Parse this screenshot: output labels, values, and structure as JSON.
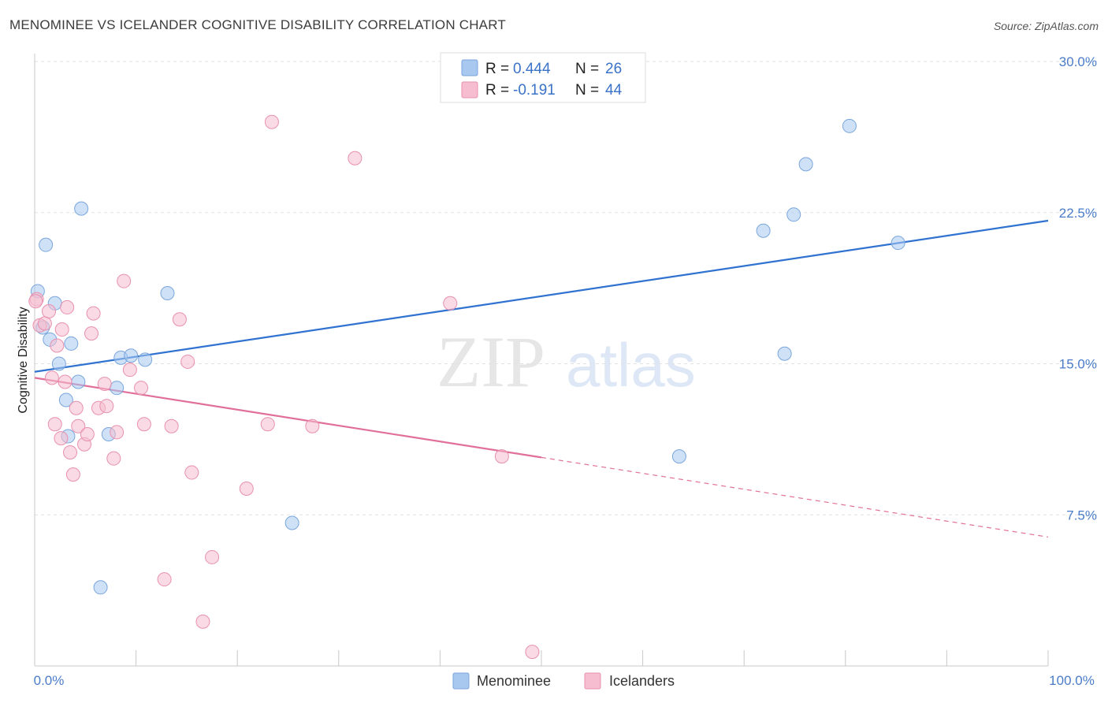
{
  "chart_data": {
    "type": "scatter",
    "title": "MENOMINEE VS ICELANDER COGNITIVE DISABILITY CORRELATION CHART",
    "source": "Source: ZipAtlas.com",
    "xlabel": "",
    "ylabel": "Cognitive Disability",
    "xlim": [
      0,
      100
    ],
    "ylim": [
      0,
      30
    ],
    "x_tick_labels": [
      "0.0%",
      "100.0%"
    ],
    "y_ticks": [
      7.5,
      15.0,
      22.5,
      30.0
    ],
    "y_tick_labels": [
      "7.5%",
      "15.0%",
      "22.5%",
      "30.0%"
    ],
    "watermark": {
      "zip": "ZIP",
      "atlas": "atlas"
    },
    "legend": {
      "r_label": "R =",
      "n_label": "N =",
      "entries": [
        {
          "r": "0.444",
          "n": "26"
        },
        {
          "r": "-0.191",
          "n": "44"
        }
      ]
    },
    "series": [
      {
        "name": "Menominee",
        "color": "#a8c8f0",
        "stroke": "#7aa6dc",
        "line_color": "#2f72d0",
        "trend": {
          "x0": 0,
          "y0": 14.6,
          "x1": 100,
          "y1": 22.1,
          "solid_until": 100
        },
        "points": [
          [
            0.3,
            18.6
          ],
          [
            0.8,
            16.8
          ],
          [
            1.1,
            20.9
          ],
          [
            1.5,
            16.2
          ],
          [
            2.0,
            18.0
          ],
          [
            2.4,
            15.0
          ],
          [
            3.1,
            13.2
          ],
          [
            3.3,
            11.4
          ],
          [
            3.6,
            16.0
          ],
          [
            4.3,
            14.1
          ],
          [
            4.6,
            22.7
          ],
          [
            6.5,
            3.9
          ],
          [
            7.3,
            11.5
          ],
          [
            8.1,
            13.8
          ],
          [
            8.5,
            15.3
          ],
          [
            9.5,
            15.4
          ],
          [
            10.9,
            15.2
          ],
          [
            13.1,
            18.5
          ],
          [
            25.4,
            7.1
          ],
          [
            63.6,
            10.4
          ],
          [
            71.9,
            21.6
          ],
          [
            74.0,
            15.5
          ],
          [
            74.9,
            22.4
          ],
          [
            76.1,
            24.9
          ],
          [
            80.4,
            26.8
          ],
          [
            85.2,
            21.0
          ]
        ]
      },
      {
        "name": "Icelanders",
        "color": "#f6bdd0",
        "stroke": "#e890ae",
        "line_color": "#e0709a",
        "trend": {
          "x0": 0,
          "y0": 14.3,
          "x1": 100,
          "y1": 6.4,
          "solid_until": 50
        },
        "points": [
          [
            0.2,
            18.2
          ],
          [
            0.5,
            16.9
          ],
          [
            1.0,
            17.0
          ],
          [
            1.4,
            17.6
          ],
          [
            1.7,
            14.3
          ],
          [
            2.0,
            12.0
          ],
          [
            2.2,
            15.9
          ],
          [
            2.6,
            11.3
          ],
          [
            2.7,
            16.7
          ],
          [
            3.0,
            14.1
          ],
          [
            3.2,
            17.8
          ],
          [
            3.5,
            10.6
          ],
          [
            3.8,
            9.5
          ],
          [
            4.1,
            12.8
          ],
          [
            4.3,
            11.9
          ],
          [
            4.9,
            11.0
          ],
          [
            5.2,
            11.5
          ],
          [
            5.6,
            16.5
          ],
          [
            5.8,
            17.5
          ],
          [
            6.3,
            12.8
          ],
          [
            6.9,
            14.0
          ],
          [
            7.1,
            12.9
          ],
          [
            7.8,
            10.3
          ],
          [
            8.1,
            11.6
          ],
          [
            8.8,
            19.1
          ],
          [
            9.4,
            14.7
          ],
          [
            10.5,
            13.8
          ],
          [
            10.8,
            12.0
          ],
          [
            12.8,
            4.3
          ],
          [
            13.5,
            11.9
          ],
          [
            14.3,
            17.2
          ],
          [
            15.1,
            15.1
          ],
          [
            15.5,
            9.6
          ],
          [
            16.6,
            2.2
          ],
          [
            17.5,
            5.4
          ],
          [
            20.9,
            8.8
          ],
          [
            23.0,
            12.0
          ],
          [
            23.4,
            27.0
          ],
          [
            27.4,
            11.9
          ],
          [
            31.6,
            25.2
          ],
          [
            41.0,
            18.0
          ],
          [
            46.1,
            10.4
          ],
          [
            49.1,
            0.7
          ],
          [
            0.1,
            18.1
          ]
        ]
      }
    ]
  }
}
